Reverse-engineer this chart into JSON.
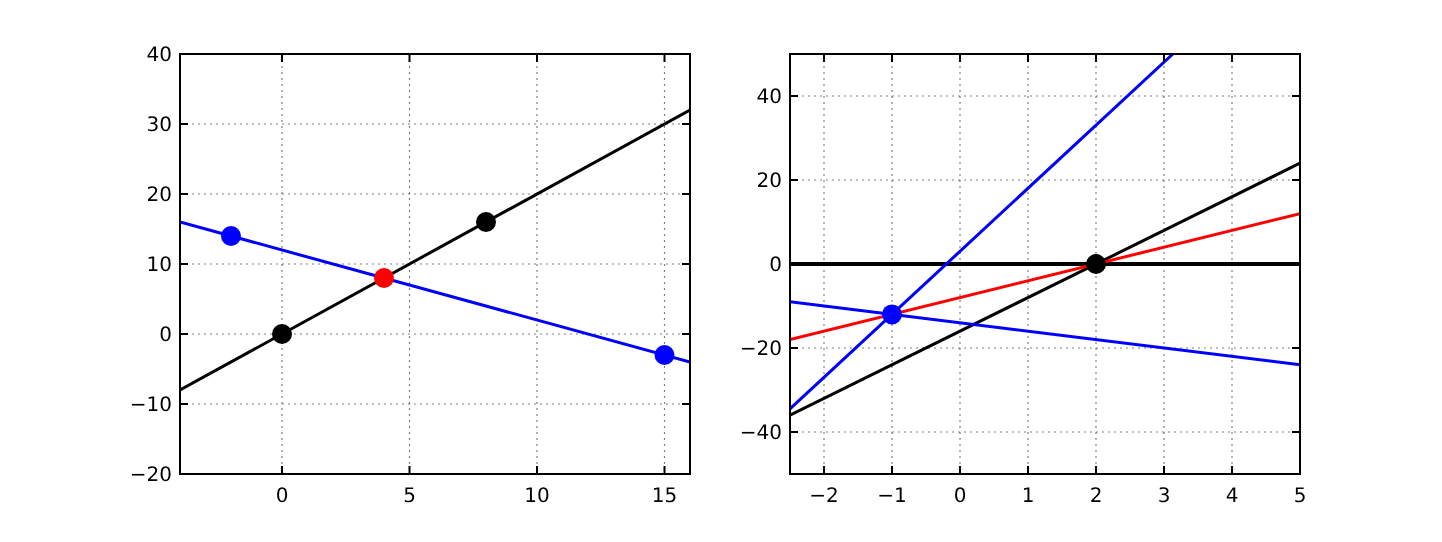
{
  "chart_data": [
    {
      "type": "line",
      "xlim": [
        -4,
        16
      ],
      "ylim": [
        -20,
        40
      ],
      "xticks": [
        0,
        5,
        10,
        15
      ],
      "yticks": [
        {
          "value": -20,
          "label": "−20"
        },
        {
          "value": -10,
          "label": "−10"
        },
        0,
        10,
        20,
        30,
        40
      ],
      "grid": true,
      "series": [
        {
          "type": "line",
          "color": "#000000",
          "x": [
            -4,
            16
          ],
          "values": [
            -8,
            32
          ]
        },
        {
          "type": "line",
          "color": "#0000ff",
          "x": [
            -4,
            16
          ],
          "values": [
            16,
            -4
          ]
        },
        {
          "type": "scatter",
          "marker": "circle",
          "color": "#000000",
          "x": [
            0,
            8
          ],
          "values": [
            0,
            16
          ]
        },
        {
          "type": "scatter",
          "marker": "circle",
          "color": "#0000ff",
          "x": [
            -2,
            15
          ],
          "values": [
            14,
            -3
          ]
        },
        {
          "type": "scatter",
          "marker": "circle",
          "color": "#ff0000",
          "x": [
            4
          ],
          "values": [
            8
          ]
        }
      ]
    },
    {
      "type": "line",
      "xlim": [
        -2.5,
        5
      ],
      "ylim": [
        -50,
        50
      ],
      "xticks": [
        {
          "value": -2,
          "label": "−2"
        },
        {
          "value": -1,
          "label": "−1"
        },
        0,
        1,
        2,
        3,
        4,
        5
      ],
      "yticks": [
        {
          "value": -40,
          "label": "−40"
        },
        {
          "value": -20,
          "label": "−20"
        },
        0,
        20,
        40
      ],
      "grid": true,
      "ref_lines": [
        {
          "axis": "y",
          "value": 0,
          "color": "#000000"
        }
      ],
      "series": [
        {
          "type": "line",
          "color": "#0000ff",
          "x": [
            -2.5,
            3.13
          ],
          "values": [
            -34.5,
            50
          ]
        },
        {
          "type": "line",
          "color": "#000000",
          "x": [
            -2.5,
            5
          ],
          "values": [
            -36,
            24
          ]
        },
        {
          "type": "line",
          "color": "#ff0000",
          "x": [
            -2.5,
            5
          ],
          "values": [
            -18,
            12
          ]
        },
        {
          "type": "line",
          "color": "#0000ff",
          "x": [
            -2.5,
            5
          ],
          "values": [
            -9,
            -24
          ]
        },
        {
          "type": "scatter",
          "marker": "circle",
          "color": "#0000ff",
          "x": [
            -1
          ],
          "values": [
            -12
          ]
        },
        {
          "type": "scatter",
          "marker": "circle",
          "color": "#000000",
          "x": [
            2
          ],
          "values": [
            0
          ]
        }
      ]
    }
  ]
}
